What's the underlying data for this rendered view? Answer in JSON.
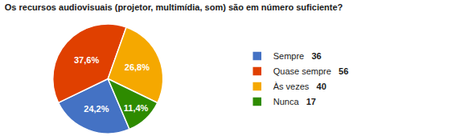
{
  "chart_data": {
    "type": "pie",
    "title": "Os recursos audiovisuais (projetor, multimídia, som) são em número suficiente?",
    "categories": [
      "Sempre",
      "Quase sempre",
      "Às vezes",
      "Nunca"
    ],
    "values": [
      24.2,
      37.6,
      26.8,
      11.4
    ],
    "value_labels": [
      "24,2%",
      "37,6%",
      "26,8%",
      "11,4%"
    ],
    "counts": [
      36,
      56,
      40,
      17
    ],
    "colors": [
      "#4472c4",
      "#e04000",
      "#f5a800",
      "#2e8b00"
    ],
    "data_labels": true,
    "legend": "right"
  }
}
